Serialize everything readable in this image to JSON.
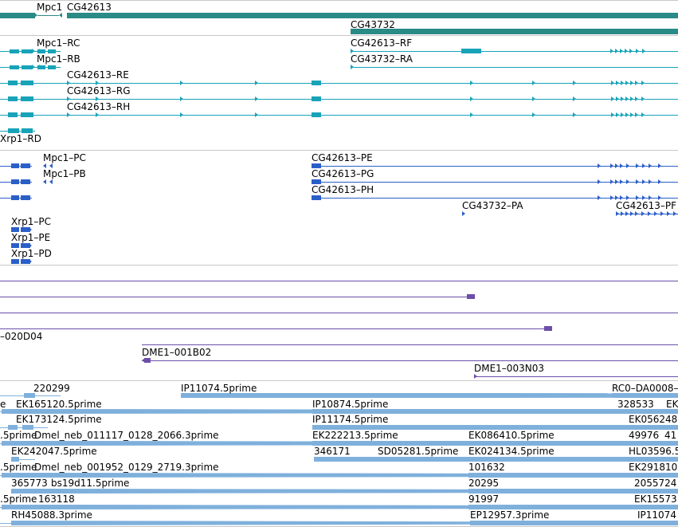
{
  "colors": {
    "gene": "#2a8a85",
    "transcript": "#18a3b8",
    "cds": "#2b5fc8",
    "clone": "#6b4fa8",
    "est": "#7fb0dc",
    "separator": "#c8c8c8"
  },
  "tracks": {
    "genes": {
      "labels": [
        "Mpc1",
        "CG42613",
        "CG43732"
      ]
    },
    "transcripts": {
      "labels": [
        "Mpc1–RC",
        "Mpc1–RB",
        "CG42613–RE",
        "CG42613–RG",
        "CG42613–RH",
        "Xrp1–RD",
        "CG42613–RF",
        "CG43732–RA"
      ]
    },
    "cds": {
      "labels": [
        "Mpc1–PC",
        "Mpc1–PB",
        "Xrp1–PC",
        "Xrp1–PE",
        "Xrp1–PD",
        "CG42613–PE",
        "CG42613–PG",
        "CG42613–PH",
        "CG43732–PA",
        "CG42613–PF"
      ]
    },
    "clones": {
      "labels": [
        "–020D04",
        "DME1–001B02",
        "DME1–003N03"
      ]
    },
    "ests": {
      "labels": [
        "220299",
        "IP11074.5prime",
        "RC0–DA0008–",
        "e",
        "EK165120.5prime",
        "IP10874.5prime",
        "328533",
        "EK",
        "EK173124.5prime",
        "IP11174.5prime",
        "EK056248",
        ".5prime",
        "Dmel_neb_011117_0128_2066.3prime",
        "EK222213.5prime",
        "EK086410.5prime",
        "49976",
        "41",
        "EK242047.5prime",
        "346171",
        "SD05281.5prime",
        "EK024134.5prime",
        "HL03596.5",
        ".5prime",
        "Dmel_neb_001952_0129_2719.3prime",
        "101632",
        "EK291810",
        "365773",
        "bs19d11.5prime",
        "20295",
        "2055724",
        ".5prime",
        "163118",
        "91997",
        "EK15573",
        "RH45088.3prime",
        "EP12957.3prime",
        "IP11074"
      ]
    }
  }
}
